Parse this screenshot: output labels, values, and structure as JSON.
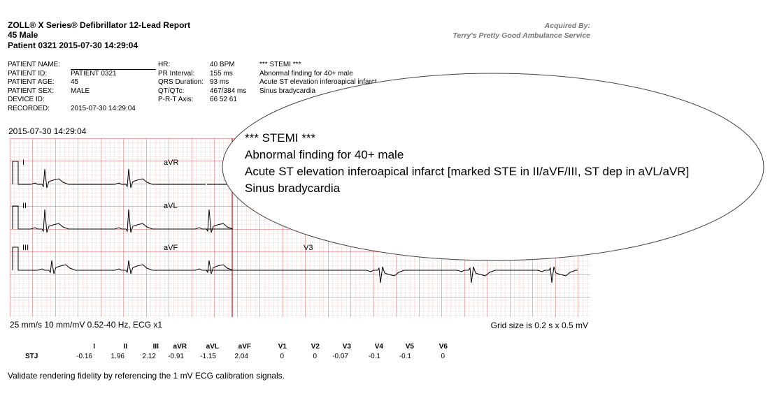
{
  "header": {
    "title": "ZOLL® X Series® Defibrillator 12-Lead Report",
    "subject": "45 Male",
    "patient_line": "Patient 0321 2015-07-30 14:29:04",
    "acquired_by_label": "Acquired By:",
    "acquired_by": "Terry's Pretty Good Ambulance Service"
  },
  "patient": [
    {
      "label": "PATIENT NAME:",
      "value": ""
    },
    {
      "label": "PATIENT ID:",
      "value": "PATIENT 0321"
    },
    {
      "label": "PATIENT AGE:",
      "value": "45"
    },
    {
      "label": "PATIENT SEX:",
      "value": "MALE"
    },
    {
      "label": "DEVICE ID:",
      "value": ""
    },
    {
      "label": "RECORDED:",
      "value": "2015-07-30 14:29:04"
    }
  ],
  "measurements": [
    {
      "label": "HR:",
      "value": "40 BPM"
    },
    {
      "label": "PR Interval:",
      "value": "155 ms"
    },
    {
      "label": "QRS Duration:",
      "value": "93 ms"
    },
    {
      "label": "QT/QTc:",
      "value": "467/384 ms"
    },
    {
      "label": "P-R-T Axis:",
      "value": "66 52 61"
    }
  ],
  "interpretation": [
    "*** STEMI ***",
    "Abnormal finding for 40+ male",
    "Acute ST elevation inferoapical infarct [marked STE in II/aVF/III, ST dep in aVL/aVR]",
    "Sinus bradycardia"
  ],
  "interpretation_truncated": [
    "*** STEMI ***",
    "Abnormal finding for 40+ male",
    "Acute ST elevation inferoapical infarct",
    "Sinus bradycardia"
  ],
  "strip_timestamp": "2015-07-30 14:29:04",
  "leads": {
    "row1": [
      "I",
      "aVR"
    ],
    "row2": [
      "II",
      "aVL"
    ],
    "row3": [
      "III",
      "aVF",
      "V3"
    ]
  },
  "footer": {
    "settings": "25 mm/s 10 mm/mV 0.52-40 Hz, ECG x1",
    "grid_size": "Grid size is 0.2 s x 0.5 mV"
  },
  "stj": {
    "row_label": "STJ",
    "leads": [
      "I",
      "II",
      "III",
      "aVR",
      "aVL",
      "aVF",
      "V1",
      "V2",
      "V3",
      "V4",
      "V5",
      "V6"
    ],
    "values": [
      "-0.16",
      "1.96",
      "2.12",
      "-0.91",
      "-1.15",
      "2.04",
      "0",
      "0",
      "-0.07",
      "-0.1",
      "-0.1",
      "0"
    ]
  },
  "note": "Validate rendering fidelity by referencing the 1 mV ECG calibration signals.",
  "colors": {
    "grid_minor": "#f4b3b3",
    "grid_major": "#e65a5a",
    "grid_dots": "#f0a0a0",
    "trace": "#000000",
    "acquired_text": "#777777"
  }
}
